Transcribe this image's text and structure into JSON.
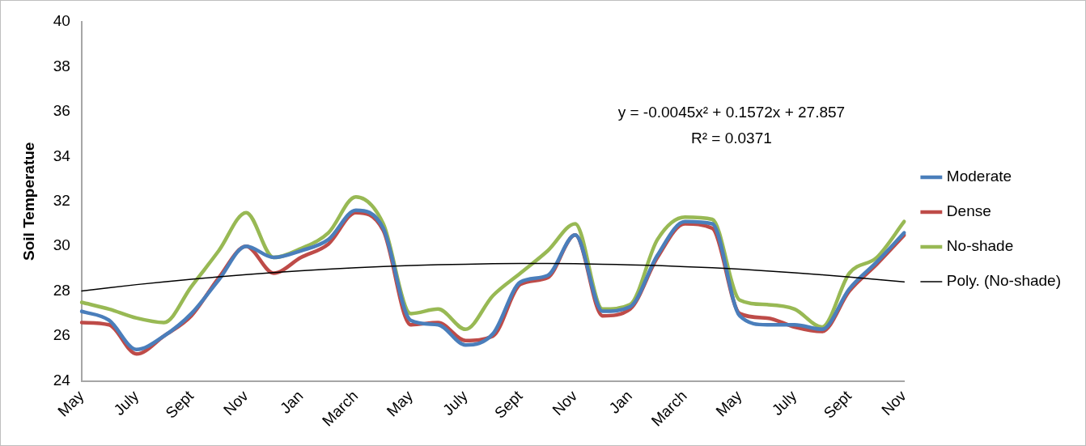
{
  "chart_data": {
    "type": "line",
    "ylabel": "Soil Temperatue",
    "categories": [
      "May",
      null,
      "July",
      null,
      "Sept",
      null,
      "Nov",
      null,
      "Jan",
      null,
      "March",
      null,
      "May",
      null,
      "July",
      null,
      "Sept",
      null,
      "Nov",
      null,
      "Jan",
      null,
      "March",
      null,
      "May",
      null,
      "July",
      null,
      "Sept",
      null,
      "Nov"
    ],
    "series": [
      {
        "name": "Moderate",
        "color": "#4a7ebb",
        "values": [
          27.1,
          26.7,
          25.4,
          26.0,
          27.0,
          28.5,
          30.0,
          29.5,
          29.8,
          30.3,
          31.6,
          30.8,
          26.7,
          26.5,
          25.6,
          26.1,
          28.4,
          28.7,
          30.5,
          27.1,
          27.3,
          29.6,
          31.1,
          31.0,
          26.9,
          26.5,
          26.5,
          26.3,
          28.1,
          29.3,
          30.6
        ]
      },
      {
        "name": "Dense",
        "color": "#be4b48",
        "values": [
          26.6,
          26.5,
          25.2,
          26.0,
          26.9,
          28.6,
          30.0,
          28.8,
          29.5,
          30.1,
          31.5,
          30.7,
          26.5,
          26.6,
          25.8,
          26.0,
          28.3,
          28.6,
          30.5,
          26.9,
          27.2,
          29.5,
          31.0,
          30.8,
          27.0,
          26.8,
          26.4,
          26.2,
          28.0,
          29.2,
          30.5
        ]
      },
      {
        "name": "No-shade",
        "color": "#98b954",
        "values": [
          27.5,
          27.2,
          26.8,
          26.6,
          28.2,
          29.8,
          31.5,
          29.5,
          29.9,
          30.6,
          32.2,
          31.0,
          27.0,
          27.2,
          26.3,
          27.8,
          28.8,
          29.8,
          31.0,
          27.2,
          27.4,
          30.3,
          31.3,
          31.2,
          27.6,
          27.4,
          27.2,
          26.4,
          28.8,
          29.5,
          31.1
        ]
      },
      {
        "name": "Poly. (No-shade)",
        "color": "#000000",
        "values": [
          28.01,
          28.15,
          28.29,
          28.41,
          28.53,
          28.64,
          28.74,
          28.83,
          28.91,
          28.98,
          29.04,
          29.1,
          29.14,
          29.18,
          29.2,
          29.22,
          29.23,
          29.23,
          29.22,
          29.2,
          29.17,
          29.14,
          29.09,
          29.04,
          28.98,
          28.9,
          28.82,
          28.73,
          28.63,
          28.52,
          28.41
        ]
      }
    ],
    "ylim": [
      24,
      40
    ],
    "yticks": [
      24,
      26,
      28,
      30,
      32,
      34,
      36,
      38,
      40
    ],
    "legend": "right",
    "marker": "none",
    "annotations": [
      "y = -0.0045x² + 0.1572x + 27.857",
      "R² = 0.0371"
    ]
  }
}
